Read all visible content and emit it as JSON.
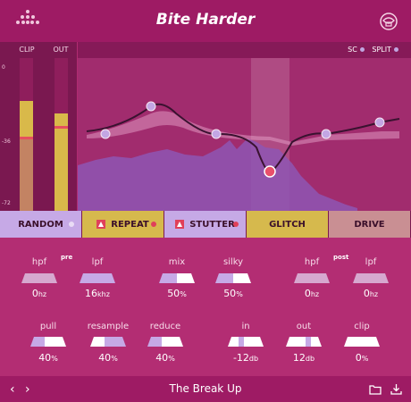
{
  "header": {
    "title": "Bite Harder",
    "logo_icon": "dots-logo-icon",
    "menu_icon": "preset-menu-icon"
  },
  "meters": {
    "clip_label": "CLIP",
    "out_label": "OUT",
    "scale": [
      "0",
      "-36",
      "-72"
    ],
    "clip_level": 0.72,
    "out_level": 0.64
  },
  "eq": {
    "sc_label": "SC",
    "split_label": "SPLIT"
  },
  "fx_buttons": [
    {
      "label": "RANDOM",
      "bg": "#c6a9e6",
      "led": "#e9dcf5"
    },
    {
      "label": "REPEAT",
      "bg": "#d6b94d",
      "led": "#e0405a"
    },
    {
      "label": "STUTTER",
      "bg": "#c6a9e6",
      "led": "#e0405a"
    },
    {
      "label": "GLITCH",
      "bg": "#d6b94d",
      "led": ""
    },
    {
      "label": "DRIVE",
      "bg": "#c98f93",
      "led": ""
    }
  ],
  "controls": {
    "pre_tag": "pre",
    "post_tag": "post",
    "pre_hpf": {
      "label": "hpf",
      "value": "0",
      "unit": "hz"
    },
    "pre_lpf": {
      "label": "lpf",
      "value": "16",
      "unit": "khz"
    },
    "mix": {
      "label": "mix",
      "value": "50",
      "unit": "%"
    },
    "silky": {
      "label": "silky",
      "value": "50",
      "unit": "%"
    },
    "post_hpf": {
      "label": "hpf",
      "value": "0",
      "unit": "hz"
    },
    "post_lpf": {
      "label": "lpf",
      "value": "0",
      "unit": "hz"
    },
    "pull": {
      "label": "pull",
      "value": "40",
      "unit": "%"
    },
    "resample": {
      "label": "resample",
      "value": "40",
      "unit": "%"
    },
    "reduce": {
      "label": "reduce",
      "value": "40",
      "unit": "%"
    },
    "in": {
      "label": "in",
      "value": "-12",
      "unit": "db"
    },
    "out": {
      "label": "out",
      "value": "12",
      "unit": "db"
    },
    "clip": {
      "label": "clip",
      "value": "0",
      "unit": "%"
    }
  },
  "footer": {
    "preset_name": "The Break Up",
    "prev_icon": "chevron-left-icon",
    "next_icon": "chevron-right-icon",
    "folder_icon": "folder-icon",
    "download_icon": "download-icon"
  },
  "colors": {
    "background": "#b12b72",
    "header": "#9e1b64",
    "lavender": "#c6a9e6",
    "gold": "#d6b94d",
    "red": "#e0405a"
  }
}
